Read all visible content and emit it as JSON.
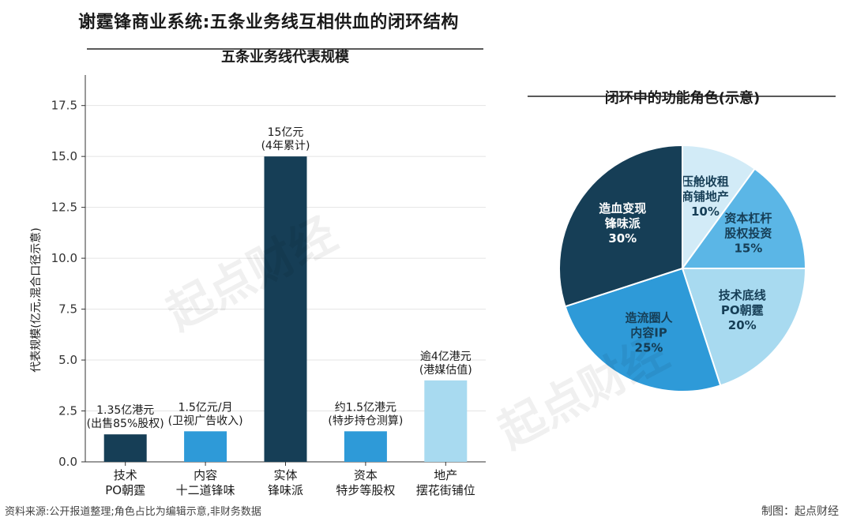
{
  "title": "谢霆锋商业系统:五条业务线互相供血的闭环结构",
  "footer": {
    "source": "资料来源:公开报道整理;角色占比为编辑示意,非财务数据",
    "credit": "制图：起点财经"
  },
  "watermark": "起点财经",
  "chart_data": [
    {
      "type": "bar",
      "title": "五条业务线代表规模",
      "ylabel": "代表规模(亿元,混合口径示意)",
      "ylim": [
        0,
        19
      ],
      "yticks": [
        "0.0",
        "2.5",
        "5.0",
        "7.5",
        "10.0",
        "12.5",
        "15.0",
        "17.5"
      ],
      "ytick_values": [
        0,
        2.5,
        5,
        7.5,
        10,
        12.5,
        15,
        17.5
      ],
      "grid": "horizontal",
      "categories": [
        [
          "技术",
          "PO朝霆"
        ],
        [
          "内容",
          "十二道锋味"
        ],
        [
          "实体",
          "锋味派"
        ],
        [
          "资本",
          "特步等股权"
        ],
        [
          "地产",
          "摆花街铺位"
        ]
      ],
      "values": [
        1.35,
        1.5,
        15,
        1.5,
        4
      ],
      "colors": [
        "#163e56",
        "#2e9ad8",
        "#163e56",
        "#2e9ad8",
        "#a8daf0"
      ],
      "data_labels": [
        [
          "1.35亿港元",
          "(出售85%股权)"
        ],
        [
          "1.5亿元/月",
          "(卫视广告收入)"
        ],
        [
          "15亿元",
          "(4年累计)"
        ],
        [
          "约1.5亿港元",
          "(特步持仓测算)"
        ],
        [
          "逾4亿港元",
          "(港媒估值)"
        ]
      ]
    },
    {
      "type": "pie",
      "title": "闭环中的功能角色(示意)",
      "slices": [
        {
          "label": [
            "压舱收租",
            "商铺地产",
            "10%"
          ],
          "value": 10,
          "color": "#d2ebf7"
        },
        {
          "label": [
            "资本杠杆",
            "股权投资",
            "15%"
          ],
          "value": 15,
          "color": "#5bb6e6"
        },
        {
          "label": [
            "技术底线",
            "PO朝霆",
            "20%"
          ],
          "value": 20,
          "color": "#a8daf0"
        },
        {
          "label": [
            "造流圈人",
            "内容IP",
            "25%"
          ],
          "value": 25,
          "color": "#2e9ad8"
        },
        {
          "label": [
            "造血变现",
            "锋味派",
            "30%"
          ],
          "value": 30,
          "color": "#163e56"
        }
      ]
    }
  ]
}
